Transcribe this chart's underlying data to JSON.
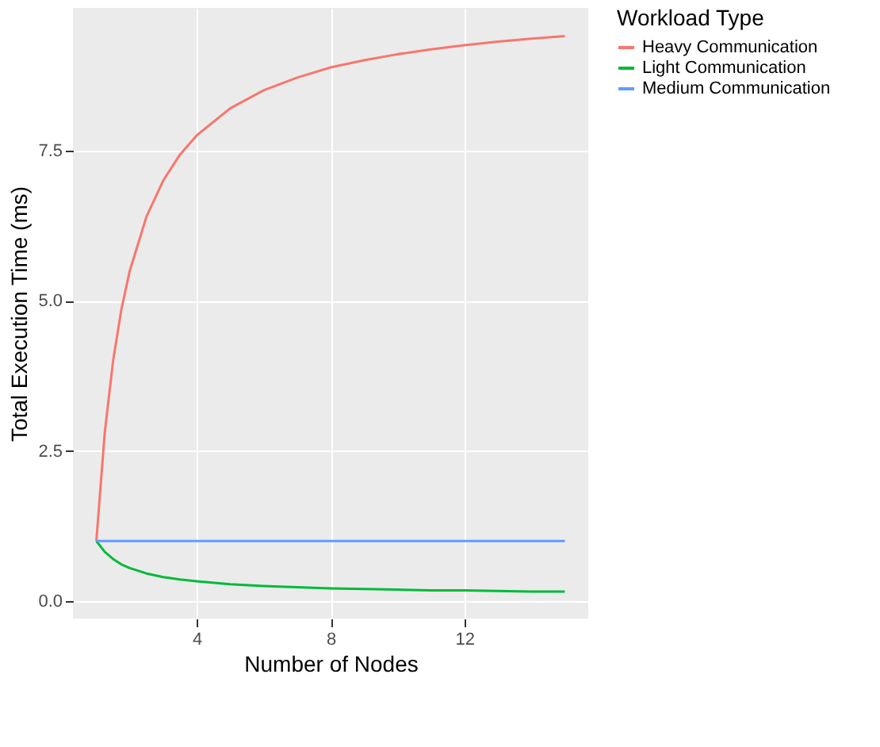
{
  "chart_data": {
    "type": "line",
    "xlabel": "Number of Nodes",
    "ylabel": "Total Execution Time (ms)",
    "legend_title": "Workload Type",
    "x": [
      1,
      1.25,
      1.5,
      1.75,
      2,
      2.5,
      3,
      3.5,
      4,
      5,
      6,
      7,
      8,
      9,
      10,
      11,
      12,
      13,
      14,
      15
    ],
    "series": [
      {
        "name": "Heavy Communication",
        "color": "#f8766d",
        "values": [
          1,
          2.8,
          4,
          4.86,
          5.5,
          6.4,
          7,
          7.43,
          7.75,
          8.2,
          8.5,
          8.71,
          8.88,
          9,
          9.1,
          9.18,
          9.25,
          9.31,
          9.36,
          9.4
        ]
      },
      {
        "name": "Light Communication",
        "color": "#00ba38",
        "values": [
          1,
          0.82,
          0.7,
          0.61,
          0.55,
          0.46,
          0.4,
          0.36,
          0.33,
          0.28,
          0.25,
          0.23,
          0.21,
          0.2,
          0.19,
          0.18,
          0.18,
          0.17,
          0.16,
          0.16
        ]
      },
      {
        "name": "Medium Communication",
        "color": "#619cff",
        "values": [
          1,
          1,
          1,
          1,
          1,
          1,
          1,
          1,
          1,
          1,
          1,
          1,
          1,
          1,
          1,
          1,
          1,
          1,
          1,
          1
        ]
      }
    ],
    "xlim": [
      0.3,
      15.7
    ],
    "xticks": [
      4,
      8,
      12
    ],
    "ylim": [
      -0.29,
      9.87
    ],
    "yticks": [
      {
        "value": 0,
        "label": "0.0"
      },
      2.5,
      {
        "value": 5,
        "label": "5.0"
      },
      7.5
    ],
    "grid": true,
    "legend": "right",
    "line_style": "solid",
    "marker": "none"
  }
}
